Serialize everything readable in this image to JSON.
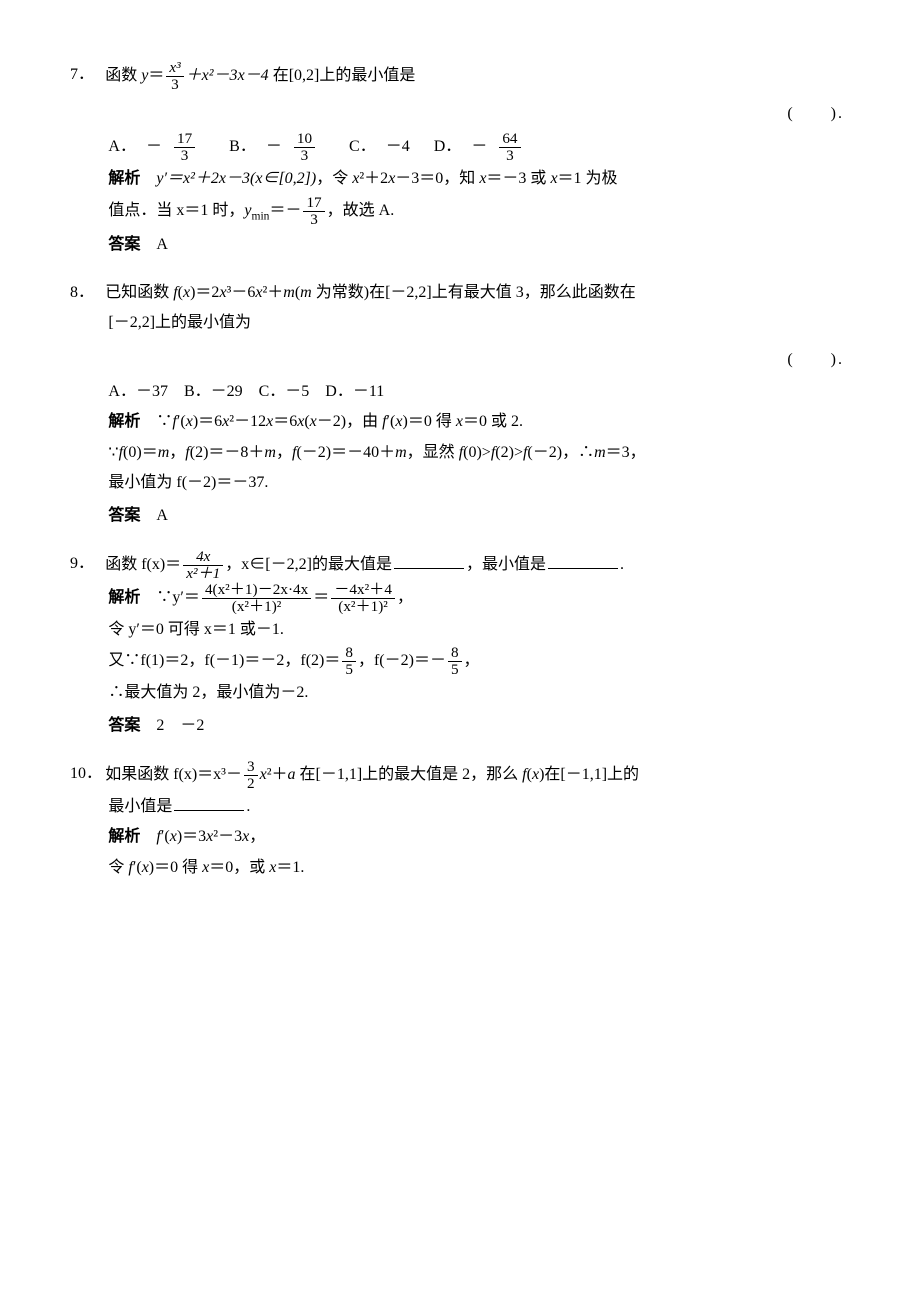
{
  "page": {
    "background_color": "#ffffff",
    "text_color": "#000000",
    "body_fontsize_pt": 12,
    "font_family": "SimSun / Times New Roman (math italic)",
    "line_height": 1.9
  },
  "labels": {
    "analysis": "解析",
    "answer": "答案"
  },
  "problems": [
    {
      "number": "7．",
      "stem_prefix": "函数 ",
      "stem_expr_lhs": "y",
      "stem_frac": {
        "num": "x³",
        "den": "3"
      },
      "stem_expr_tail": "＋x²－3x－4",
      "stem_suffix": " 在[0,2]上的最小值是",
      "paren": "(　　).",
      "choices": {
        "A_label": "A．",
        "A_frac": {
          "sign": "－",
          "num": "17",
          "den": "3"
        },
        "B_label": "B．",
        "B_frac": {
          "sign": "－",
          "num": "10",
          "den": "3"
        },
        "C_label": "C．",
        "C_text": "－4",
        "D_label": "D．",
        "D_frac": {
          "sign": "－",
          "num": "64",
          "den": "3"
        }
      },
      "analysis_line1_a": "y′＝x²＋2x－3(x∈[0,2])，令 x²＋2x－3＝0，知 x＝－3 或 x＝1 为极",
      "analysis_line2_a": "值点．当 x＝1 时，",
      "analysis_ymin_lhs": "yₘᵢₙ＝－",
      "analysis_ymin_frac": {
        "num": "17",
        "den": "3"
      },
      "analysis_line2_tail": "，故选 A.",
      "answer": "A"
    },
    {
      "number": "8．",
      "stem_line1": "已知函数 f(x)＝2x³－6x²＋m(m 为常数)在[－2,2]上有最大值 3，那么此函数在",
      "stem_line2": "[－2,2]上的最小值为",
      "paren": "(　　).",
      "choices_text": "A．－37　B．－29　C．－5　D．－11",
      "analysis_l1": "∵f′(x)＝6x²－12x＝6x(x－2)，由 f′(x)＝0 得 x＝0 或 2.",
      "analysis_l2": "∵f(0)＝m，f(2)＝－8＋m，f(－2)＝－40＋m，显然 f(0)>f(2)>f(－2)，∴m＝3，",
      "analysis_l3": "最小值为 f(－2)＝－37.",
      "answer": "A"
    },
    {
      "number": "9．",
      "stem_prefix": "函数 f(x)＝",
      "stem_frac": {
        "num": "4x",
        "den": "x²＋1"
      },
      "stem_mid": "，x∈[－2,2]的最大值是",
      "stem_mid2": "，最小值是",
      "stem_tail": ".",
      "analysis_prefix": "∵y′＝",
      "analysis_frac1": {
        "num": "4(x²＋1)－2x·4x",
        "den": "(x²＋1)²"
      },
      "analysis_eq": "＝",
      "analysis_frac2": {
        "num": "－4x²＋4",
        "den": "(x²＋1)²"
      },
      "analysis_comma": "，",
      "analysis_l2": "令 y′＝0 可得 x＝1 或－1.",
      "analysis_l3_a": "又∵f(1)＝2，f(－1)＝－2，f(2)＝",
      "analysis_l3_frac1": {
        "num": "8",
        "den": "5"
      },
      "analysis_l3_b": "，f(－2)＝－",
      "analysis_l3_frac2": {
        "num": "8",
        "den": "5"
      },
      "analysis_l3_c": "，",
      "analysis_l4": "∴最大值为 2，最小值为－2.",
      "answer": "2　－2"
    },
    {
      "number": "10．",
      "stem_prefix": "如果函数 f(x)＝x³－",
      "stem_frac": {
        "num": "3",
        "den": "2"
      },
      "stem_mid": "x²＋a 在[－1,1]上的最大值是 2，那么 f(x)在[－1,1]上的",
      "stem_line2": "最小值是",
      "stem_tail": ".",
      "analysis_l1": "f′(x)＝3x²－3x，",
      "analysis_l2": "令 f′(x)＝0 得 x＝0，或 x＝1."
    }
  ]
}
